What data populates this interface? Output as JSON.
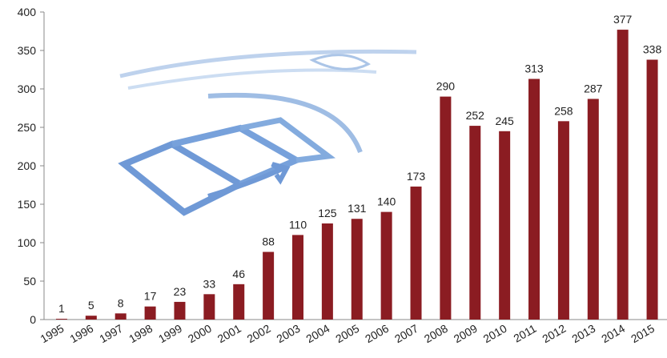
{
  "chart_data": {
    "type": "bar",
    "categories": [
      "1995",
      "1996",
      "1997",
      "1998",
      "1999",
      "2000",
      "2001",
      "2002",
      "2003",
      "2004",
      "2005",
      "2006",
      "2007",
      "2008",
      "2009",
      "2010",
      "2011",
      "2012",
      "2013",
      "2014",
      "2015"
    ],
    "values": [
      1,
      5,
      8,
      17,
      23,
      33,
      46,
      88,
      110,
      125,
      131,
      140,
      173,
      290,
      252,
      245,
      313,
      258,
      287,
      377,
      338
    ],
    "color": "#8b1c22",
    "ylim": [
      0,
      400
    ],
    "yticks": [
      0,
      50,
      100,
      150,
      200,
      250,
      300,
      350,
      400
    ],
    "grid": false
  }
}
